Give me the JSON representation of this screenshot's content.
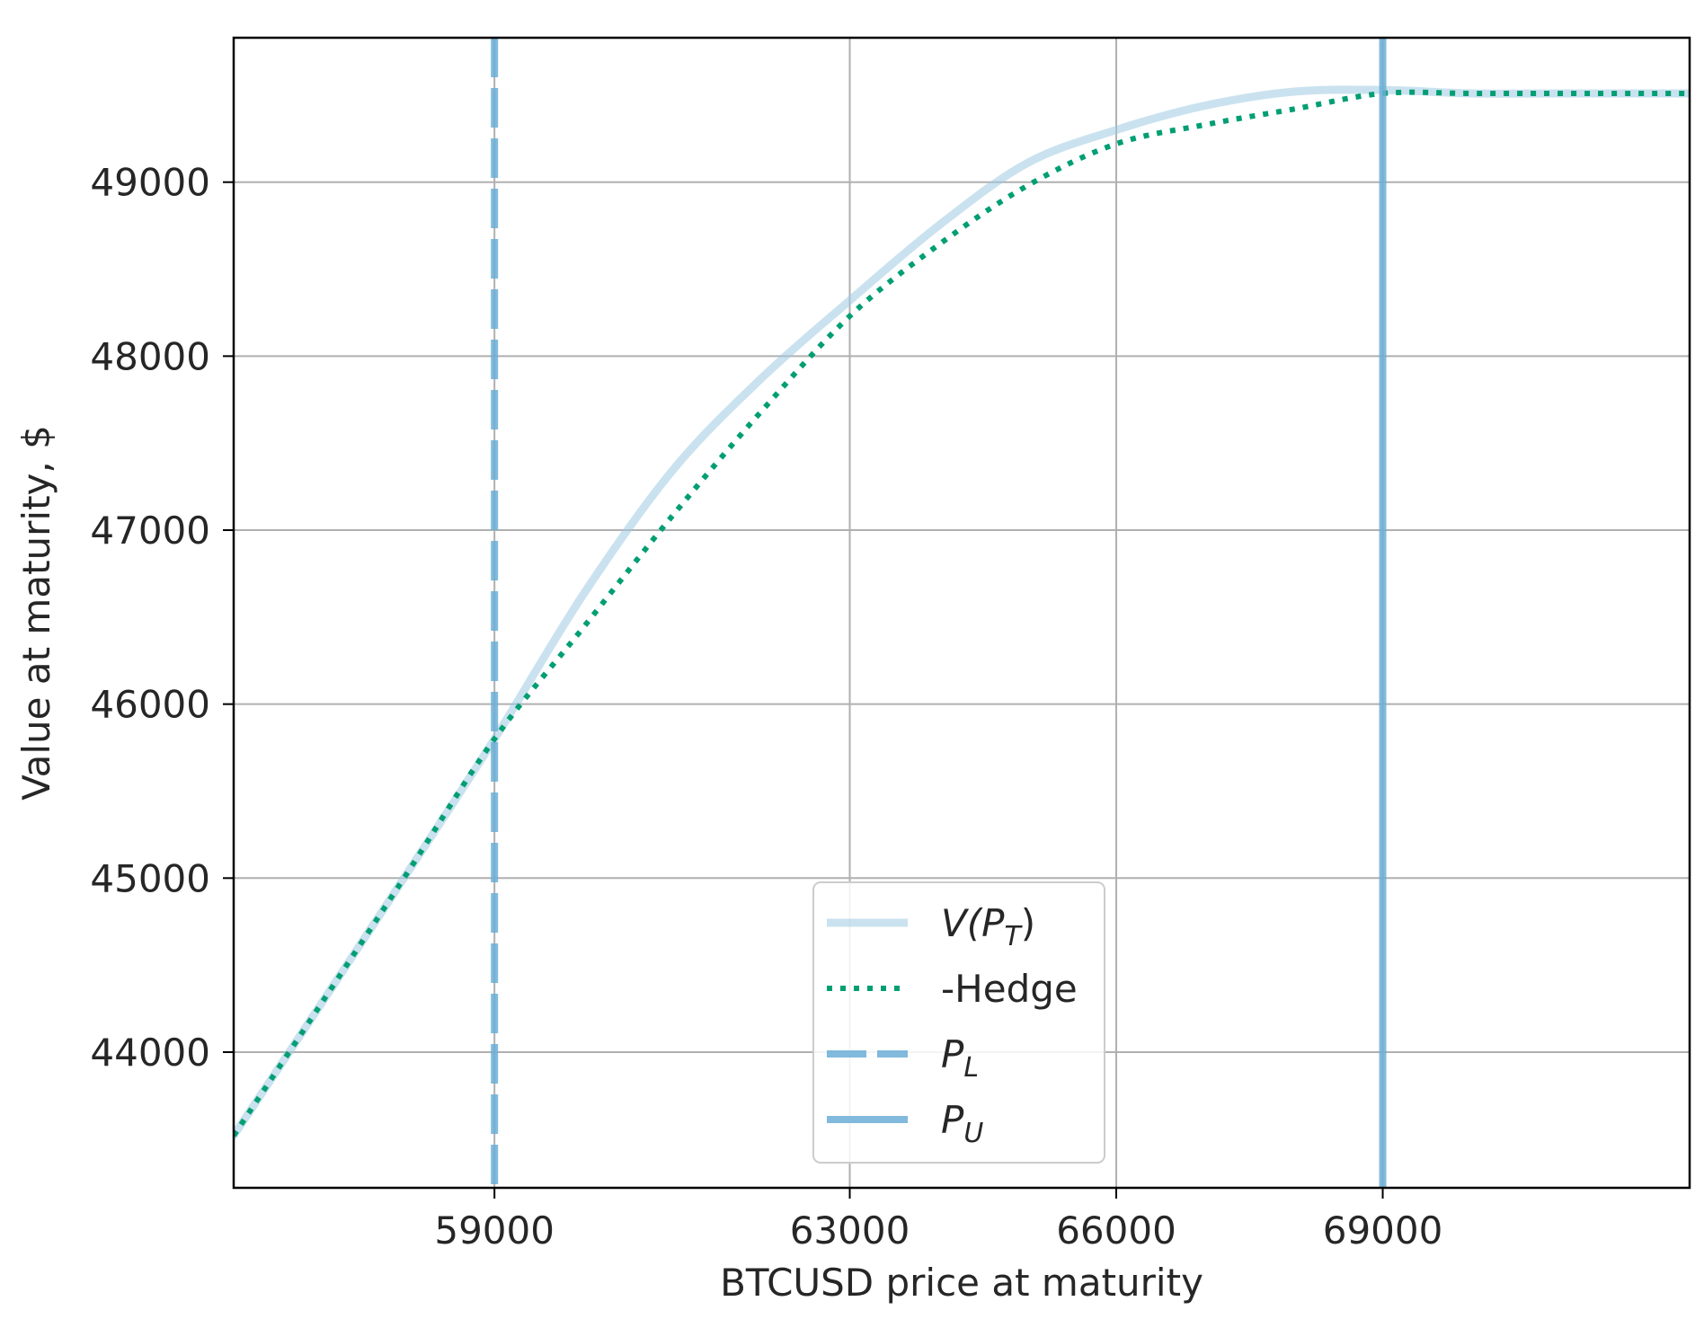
{
  "chart_data": {
    "type": "line",
    "xlabel": "BTCUSD price at maturity",
    "ylabel": "Value at maturity, $",
    "xlim": [
      56064,
      72455
    ],
    "ylim": [
      43220,
      49830
    ],
    "xticks": [
      59000,
      63000,
      66000,
      69000
    ],
    "xtick_labels": [
      "59000",
      "63000",
      "66000",
      "69000"
    ],
    "yticks": [
      44000,
      45000,
      46000,
      47000,
      48000,
      49000
    ],
    "ytick_labels": [
      "44000",
      "45000",
      "46000",
      "47000",
      "48000",
      "49000"
    ],
    "grid": true,
    "legend_position": "lower-center",
    "series": [
      {
        "name": "V(P_T)",
        "style": "solid",
        "color": "#9ecae1",
        "x": [
          56064,
          57000,
          58000,
          59000,
          60000,
          61000,
          62000,
          63000,
          64000,
          65000,
          66000,
          67000,
          68000,
          69000,
          70000,
          71000,
          72455
        ],
        "y": [
          43520,
          44240,
          45015,
          45800,
          46630,
          47340,
          47870,
          48320,
          48750,
          49110,
          49300,
          49440,
          49520,
          49530,
          49510,
          49510,
          49510
        ]
      },
      {
        "name": "-Hedge",
        "style": "dotted",
        "color": "#009e73",
        "x": [
          56064,
          57000,
          58000,
          59000,
          60000,
          61000,
          62000,
          63000,
          64000,
          65000,
          66000,
          67000,
          68000,
          69000,
          70000,
          71000,
          72455
        ],
        "y": [
          43520,
          44240,
          45015,
          45800,
          46440,
          47080,
          47680,
          48230,
          48640,
          48980,
          49220,
          49330,
          49420,
          49510,
          49510,
          49510,
          49510
        ]
      },
      {
        "name": "P_L",
        "style": "dashed-vertical",
        "color": "#6baed6",
        "x": 59000
      },
      {
        "name": "P_U",
        "style": "solid-vertical",
        "color": "#6baed6",
        "x": 69000
      }
    ],
    "legend": [
      {
        "main": "V(P",
        "sub": "T",
        "tail": ")"
      },
      {
        "main": "-Hedge",
        "sub": "",
        "tail": ""
      },
      {
        "main": "P",
        "sub": "L",
        "tail": ""
      },
      {
        "main": "P",
        "sub": "U",
        "tail": ""
      }
    ],
    "colors": {
      "grid": "#b0b0b0",
      "frame": "#000000",
      "text": "#262626",
      "legend_border": "#cccccc"
    }
  }
}
